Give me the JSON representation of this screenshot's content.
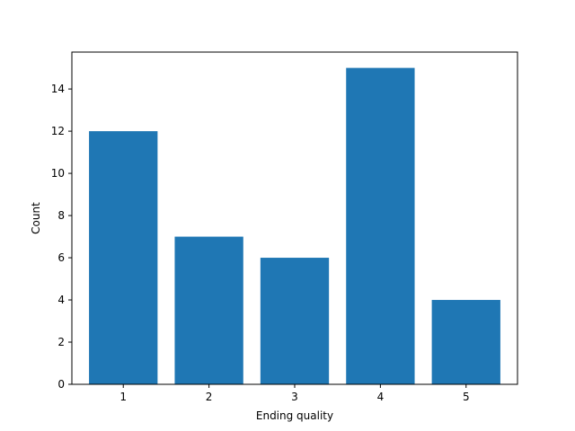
{
  "chart_data": {
    "type": "bar",
    "categories": [
      "1",
      "2",
      "3",
      "4",
      "5"
    ],
    "values": [
      12,
      7,
      6,
      15,
      4
    ],
    "title": "",
    "xlabel": "Ending quality",
    "ylabel": "Count",
    "ylim": [
      0,
      15.75
    ],
    "yticks": [
      0,
      2,
      4,
      6,
      8,
      10,
      12,
      14
    ],
    "grid": false,
    "bar_color": "#1f77b4"
  }
}
